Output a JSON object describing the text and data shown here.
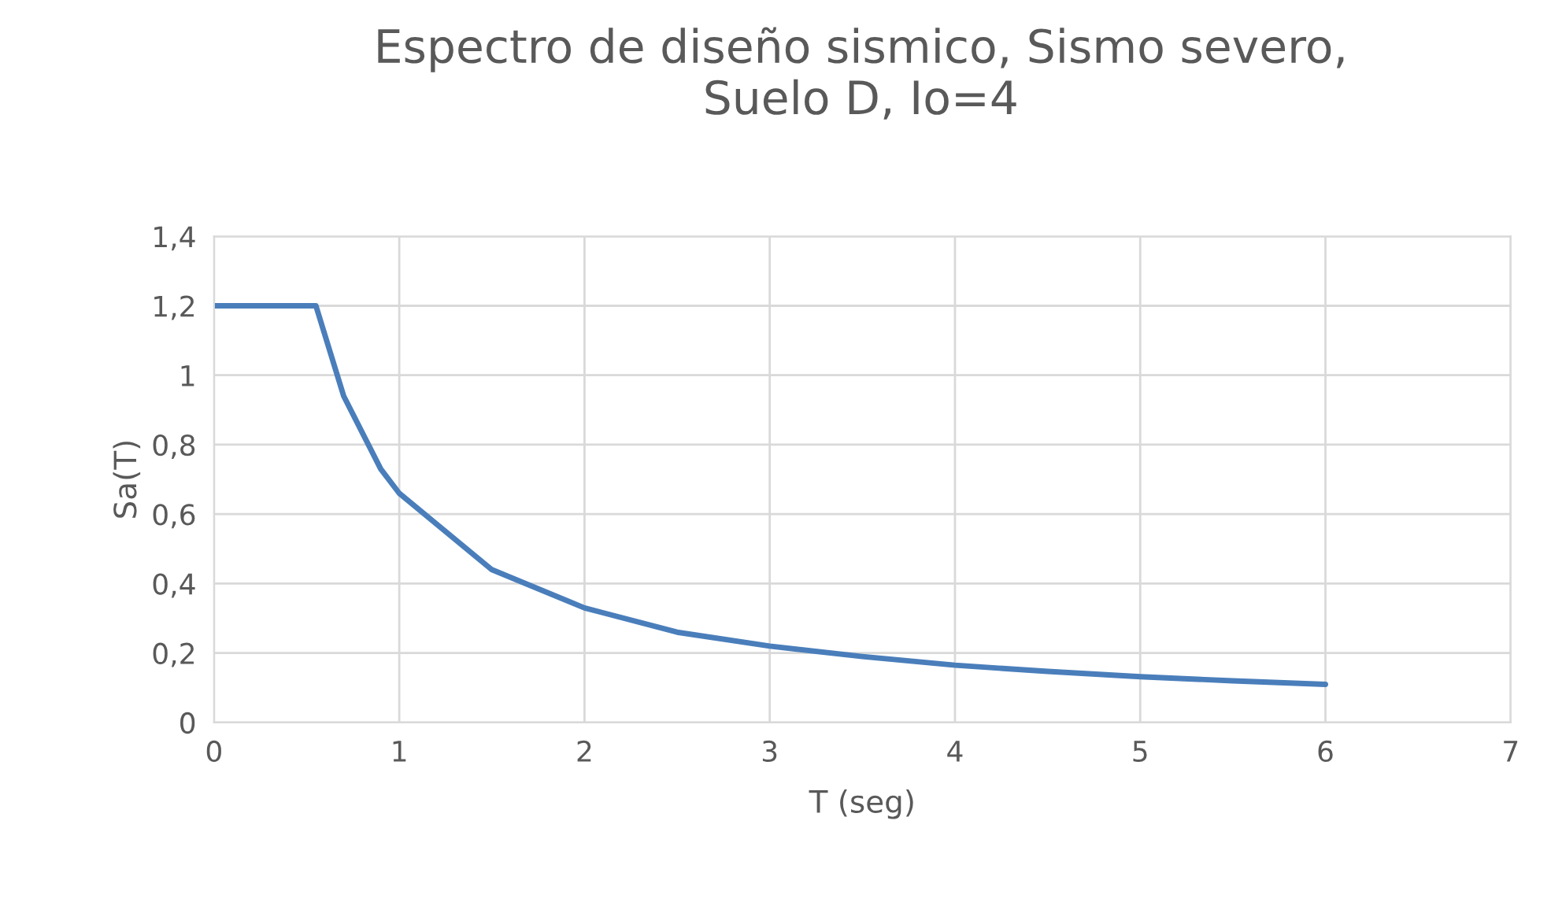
{
  "chart_data": {
    "type": "line",
    "title": "Espectro de diseño sismico, Sismo severo,\nSuelo D, Io=4",
    "xlabel": "T (seg)",
    "ylabel": "Sa(T)",
    "x": [
      0,
      0.55,
      0.7,
      0.9,
      1,
      1.5,
      2,
      2.5,
      3,
      3.5,
      4,
      4.5,
      5,
      5.5,
      6
    ],
    "series": [
      {
        "color": "#4a7ebb",
        "values": [
          1.2,
          1.2,
          0.94,
          0.73,
          0.66,
          0.44,
          0.33,
          0.26,
          0.22,
          0.19,
          0.165,
          0.147,
          0.132,
          0.12,
          0.11
        ]
      }
    ],
    "xlim": [
      0,
      7
    ],
    "xticks": [
      0,
      1,
      2,
      3,
      4,
      5,
      6,
      7
    ],
    "ylim": [
      0,
      1.4
    ],
    "yticks": [
      0,
      {
        "value": 0.2,
        "label": "0,2"
      },
      {
        "value": 0.4,
        "label": "0,4"
      },
      {
        "value": 0.6,
        "label": "0,6"
      },
      {
        "value": 0.8,
        "label": "0,8"
      },
      1,
      {
        "value": 1.2,
        "label": "1,2"
      },
      {
        "value": 1.4,
        "label": "1,4"
      }
    ],
    "grid": true,
    "legend": false,
    "marker": "none",
    "line_style": "solid"
  }
}
